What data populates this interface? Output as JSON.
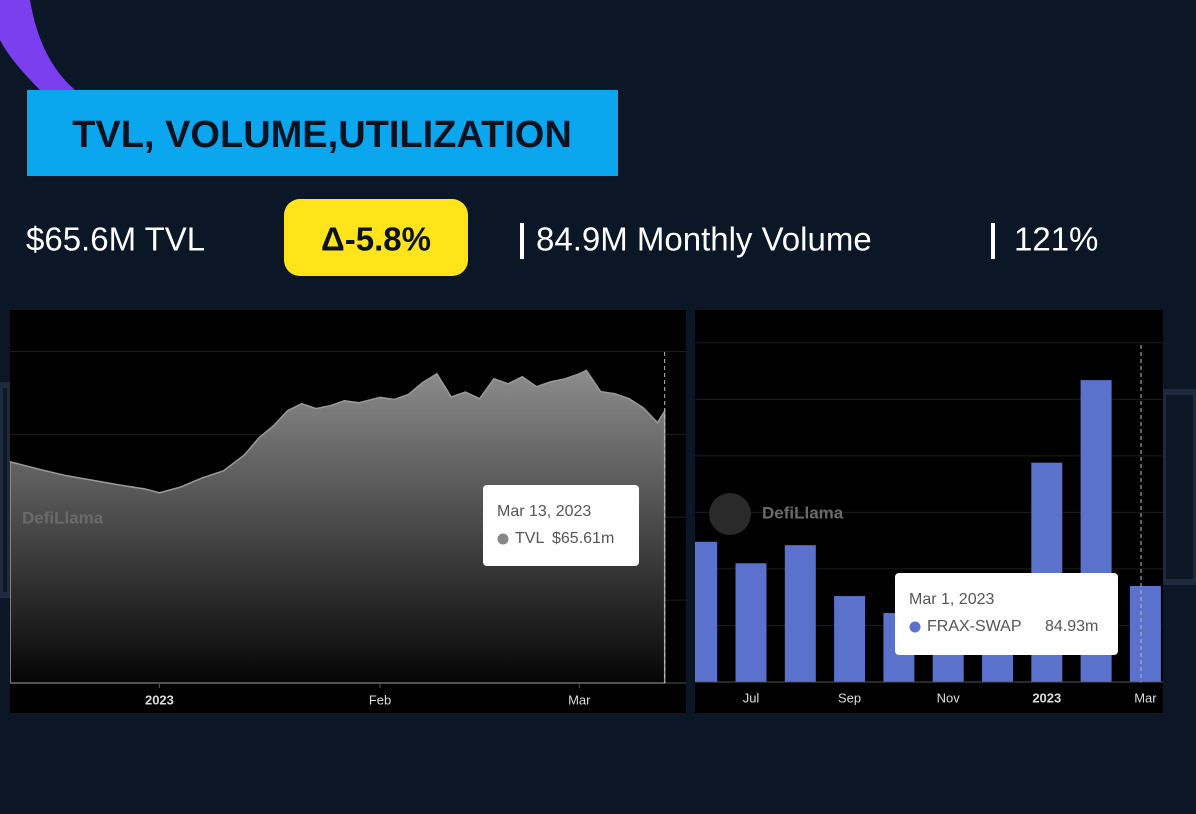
{
  "header": {
    "title": "TVL, VOLUME,UTILIZATION"
  },
  "stats": {
    "tvl": "$65.6M TVL",
    "change": "Δ-5.8%",
    "volume": "84.9M Monthly Volume",
    "utilization": "121%"
  },
  "chart_data": [
    {
      "type": "area",
      "watermark": "DefiLlama",
      "x": [
        "2022-12-11",
        "2022-12-15",
        "2022-12-19",
        "2022-12-23",
        "2022-12-27",
        "2022-12-30",
        "2023-01-01",
        "2023-01-04",
        "2023-01-07",
        "2023-01-10",
        "2023-01-13",
        "2023-01-15",
        "2023-01-17",
        "2023-01-19",
        "2023-01-21",
        "2023-01-23",
        "2023-01-25",
        "2023-01-27",
        "2023-01-29",
        "2023-02-01",
        "2023-02-03",
        "2023-02-05",
        "2023-02-07",
        "2023-02-09",
        "2023-02-11",
        "2023-02-13",
        "2023-02-15",
        "2023-02-17",
        "2023-02-19",
        "2023-02-21",
        "2023-02-23",
        "2023-02-25",
        "2023-02-27",
        "2023-03-01",
        "2023-03-02",
        "2023-03-04",
        "2023-03-06",
        "2023-03-08",
        "2023-03-10",
        "2023-03-12",
        "2023-03-13"
      ],
      "series": [
        {
          "name": "TVL",
          "color": "#9a9a9a",
          "values": [
            53.4,
            51.6,
            50.0,
            48.8,
            47.6,
            46.8,
            45.9,
            47.3,
            49.5,
            51.2,
            55.1,
            59.2,
            62.0,
            65.7,
            67.4,
            66.2,
            66.9,
            68.1,
            67.6,
            68.9,
            68.4,
            69.6,
            72.5,
            74.6,
            69.0,
            70.2,
            68.6,
            73.4,
            72.2,
            73.9,
            71.5,
            72.7,
            73.4,
            74.6,
            75.4,
            70.3,
            69.8,
            68.6,
            66.4,
            62.8,
            65.61
          ]
        }
      ],
      "xlim": [
        "2022-12-11",
        "2023-03-16"
      ],
      "xticks": [
        {
          "value": "2023-01-01",
          "label": "2023"
        },
        {
          "value": "2023-02-01",
          "label": "Feb"
        },
        {
          "value": "2023-03-01",
          "label": "Mar"
        }
      ],
      "ylim": [
        0,
        90
      ],
      "yticks": [
        0,
        20,
        40,
        60,
        80
      ],
      "grid": true,
      "tooltip": {
        "date": "Mar 13, 2023",
        "value": "$65.61m"
      }
    },
    {
      "type": "bar",
      "watermark": "DefiLlama",
      "categories": [
        null,
        "Jul",
        null,
        "Sep",
        null,
        "Nov",
        null,
        "2023",
        null,
        "Mar"
      ],
      "series": [
        {
          "name": "FRAX-SWAP",
          "color": "#5a72cc",
          "values": [
            124,
            105,
            121,
            76,
            61,
            45,
            40,
            194,
            267,
            84.93
          ]
        }
      ],
      "ylim": [
        0,
        329
      ],
      "yticks": [
        0,
        50,
        100,
        150,
        200,
        250,
        300
      ],
      "grid": true,
      "tooltip": {
        "date": "Mar 1, 2023",
        "value": "84.93m"
      }
    }
  ]
}
